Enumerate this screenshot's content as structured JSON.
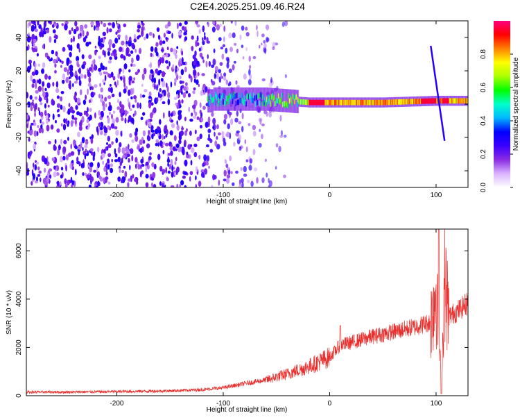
{
  "title": "C2E4.2025.251.09.46.R24",
  "chart_data": [
    {
      "type": "heatmap",
      "xlabel": "Height of straight line (km)",
      "ylabel": "Frequency (Hz)",
      "xlim": [
        -285,
        130
      ],
      "ylim": [
        -50,
        50
      ],
      "xticks": [
        -200,
        -100,
        0,
        100
      ],
      "xtick_labels": [
        "-200",
        "-100",
        "0",
        "100"
      ],
      "yticks": [
        -40,
        -20,
        0,
        20,
        40
      ],
      "ytick_labels": [
        "-40",
        "-20",
        "0",
        "20",
        "40"
      ],
      "colorbar": {
        "label": "Normalized spectral amplitude",
        "range": [
          0,
          1
        ],
        "ticks": [
          0,
          0.2,
          0.4,
          0.6,
          0.8
        ],
        "tick_labels": [
          "0.0",
          "0.2",
          "0.4",
          "0.6",
          "0.8"
        ],
        "colors": [
          "#ffffff",
          "#d9b3ff",
          "#8a2be2",
          "#3a00ff",
          "#0000ff",
          "#00b7ff",
          "#00ffcc",
          "#00ff00",
          "#aaff00",
          "#ffff00",
          "#ff8000",
          "#ff0000",
          "#ff0080"
        ]
      },
      "features": {
        "noise_region_x": [
          -285,
          -60
        ],
        "carrier_x": [
          -115,
          130
        ],
        "carrier_freq_near_x": [
          [
            -110,
            3
          ],
          [
            -60,
            3
          ],
          [
            -20,
            1
          ],
          [
            0,
            1
          ],
          [
            50,
            1
          ],
          [
            100,
            2
          ],
          [
            130,
            2
          ]
        ],
        "streak": {
          "x": [
            95,
            108
          ],
          "freq": [
            35,
            -22
          ]
        }
      }
    },
    {
      "type": "line",
      "xlabel": "Height of straight line (km)",
      "ylabel": "SNR (10 * v/v)",
      "xlim": [
        -285,
        130
      ],
      "ylim": [
        0,
        6900
      ],
      "xticks": [
        -200,
        -100,
        0,
        100
      ],
      "xtick_labels": [
        "-200",
        "-100",
        "0",
        "100"
      ],
      "yticks": [
        0,
        2000,
        4000,
        6000
      ],
      "ytick_labels": [
        "0",
        "2000",
        "4000",
        "6000"
      ],
      "series_color": "#e8302e",
      "series": [
        {
          "x": [
            -285,
            -250,
            -200,
            -150,
            -120,
            -100,
            -80,
            -60,
            -40,
            -20,
            0,
            10,
            20,
            40,
            60,
            80,
            95,
            100,
            103,
            105,
            108,
            112,
            120,
            130
          ],
          "y": [
            150,
            150,
            170,
            200,
            250,
            330,
            500,
            650,
            900,
            1200,
            1600,
            2100,
            2200,
            2450,
            2650,
            2850,
            3050,
            4500,
            2200,
            300,
            4800,
            3300,
            3500,
            3850
          ]
        }
      ]
    }
  ]
}
